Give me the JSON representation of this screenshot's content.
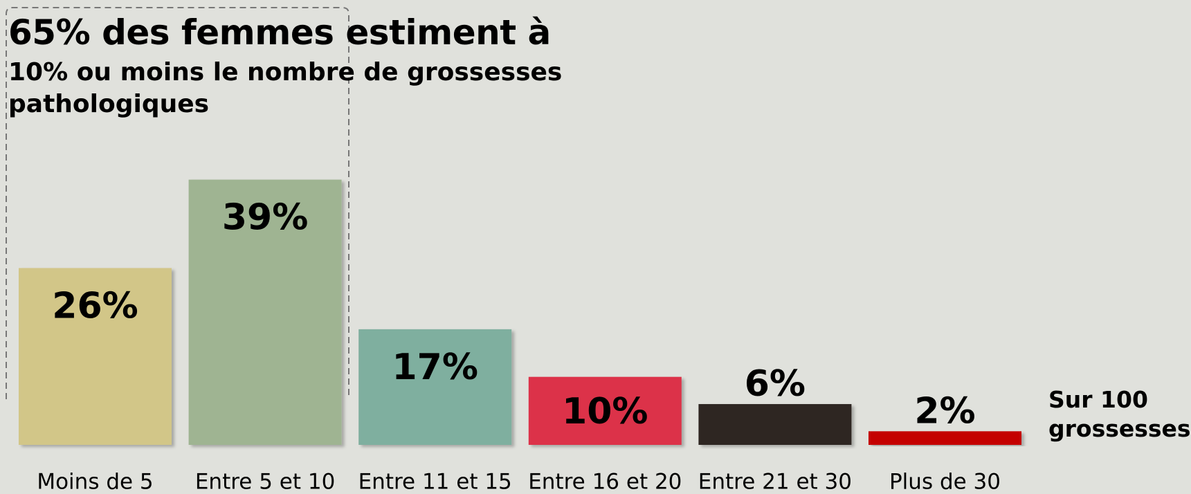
{
  "chart_data": {
    "type": "bar",
    "title": "65% des femmes estiment à",
    "subtitle": "10% ou moins le nombre de grossesses pathologiques",
    "annotation": "Sur 100 grossesses",
    "categories": [
      "Moins de 5",
      "Entre 5 et 10",
      "Entre 11 et 15",
      "Entre 16 et 20",
      "Entre 21 et 30",
      "Plus de 30"
    ],
    "values": [
      26,
      39,
      17,
      10,
      6,
      2
    ],
    "value_labels": [
      "26%",
      "39%",
      "17%",
      "10%",
      "6%",
      "2%"
    ],
    "colors": [
      "#d2c688",
      "#9fb492",
      "#7faf9f",
      "#dc324a",
      "#2f2623",
      "#c40000"
    ],
    "label_colors": [
      "#000000",
      "#000000",
      "#000000",
      "#000000",
      "#ffffff",
      "#000000"
    ]
  }
}
